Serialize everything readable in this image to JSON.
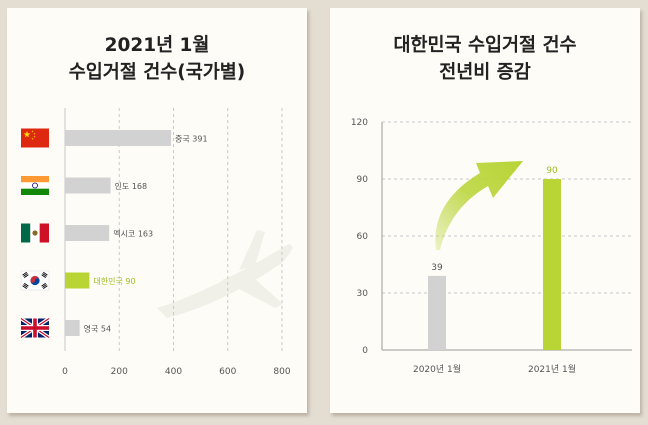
{
  "colors": {
    "highlight": "#b8d435",
    "bar": "#d2d2d2",
    "grid": "#c9c9c9",
    "axis": "#9a9a9a",
    "label": "#555555",
    "highlight_label": "#9cbe22"
  },
  "chart_data": [
    {
      "type": "bar",
      "orientation": "horizontal",
      "title_lines": [
        "2021년 1월",
        "수입거절 건수(국가별)"
      ],
      "categories": [
        "중국",
        "인도",
        "멕시코",
        "대한민국",
        "영국"
      ],
      "values": [
        391,
        168,
        163,
        90,
        54
      ],
      "data_labels": [
        "중국 391",
        "인도 168",
        "멕시코 163",
        "대한민국 90",
        "영국 54"
      ],
      "flag_icons": [
        "china-flag-icon",
        "india-flag-icon",
        "mexico-flag-icon",
        "korea-flag-icon",
        "uk-flag-icon"
      ],
      "highlight": "대한민국",
      "xlim": [
        0,
        800
      ],
      "x_ticks": [
        0,
        200,
        400,
        600,
        800
      ],
      "grid": true,
      "background_icon": "airplane-icon"
    },
    {
      "type": "bar",
      "title_lines": [
        "대한민국 수입거절 건수",
        "전년비 증감"
      ],
      "categories": [
        "2020년 1월",
        "2021년 1월"
      ],
      "values": [
        39,
        90
      ],
      "data_labels": [
        "39",
        "90"
      ],
      "highlight": "2021년 1월",
      "ylim": [
        0,
        120
      ],
      "y_ticks": [
        0,
        30,
        60,
        90,
        120
      ],
      "grid": true,
      "annotation_icon": "increase-arrow-icon"
    }
  ]
}
